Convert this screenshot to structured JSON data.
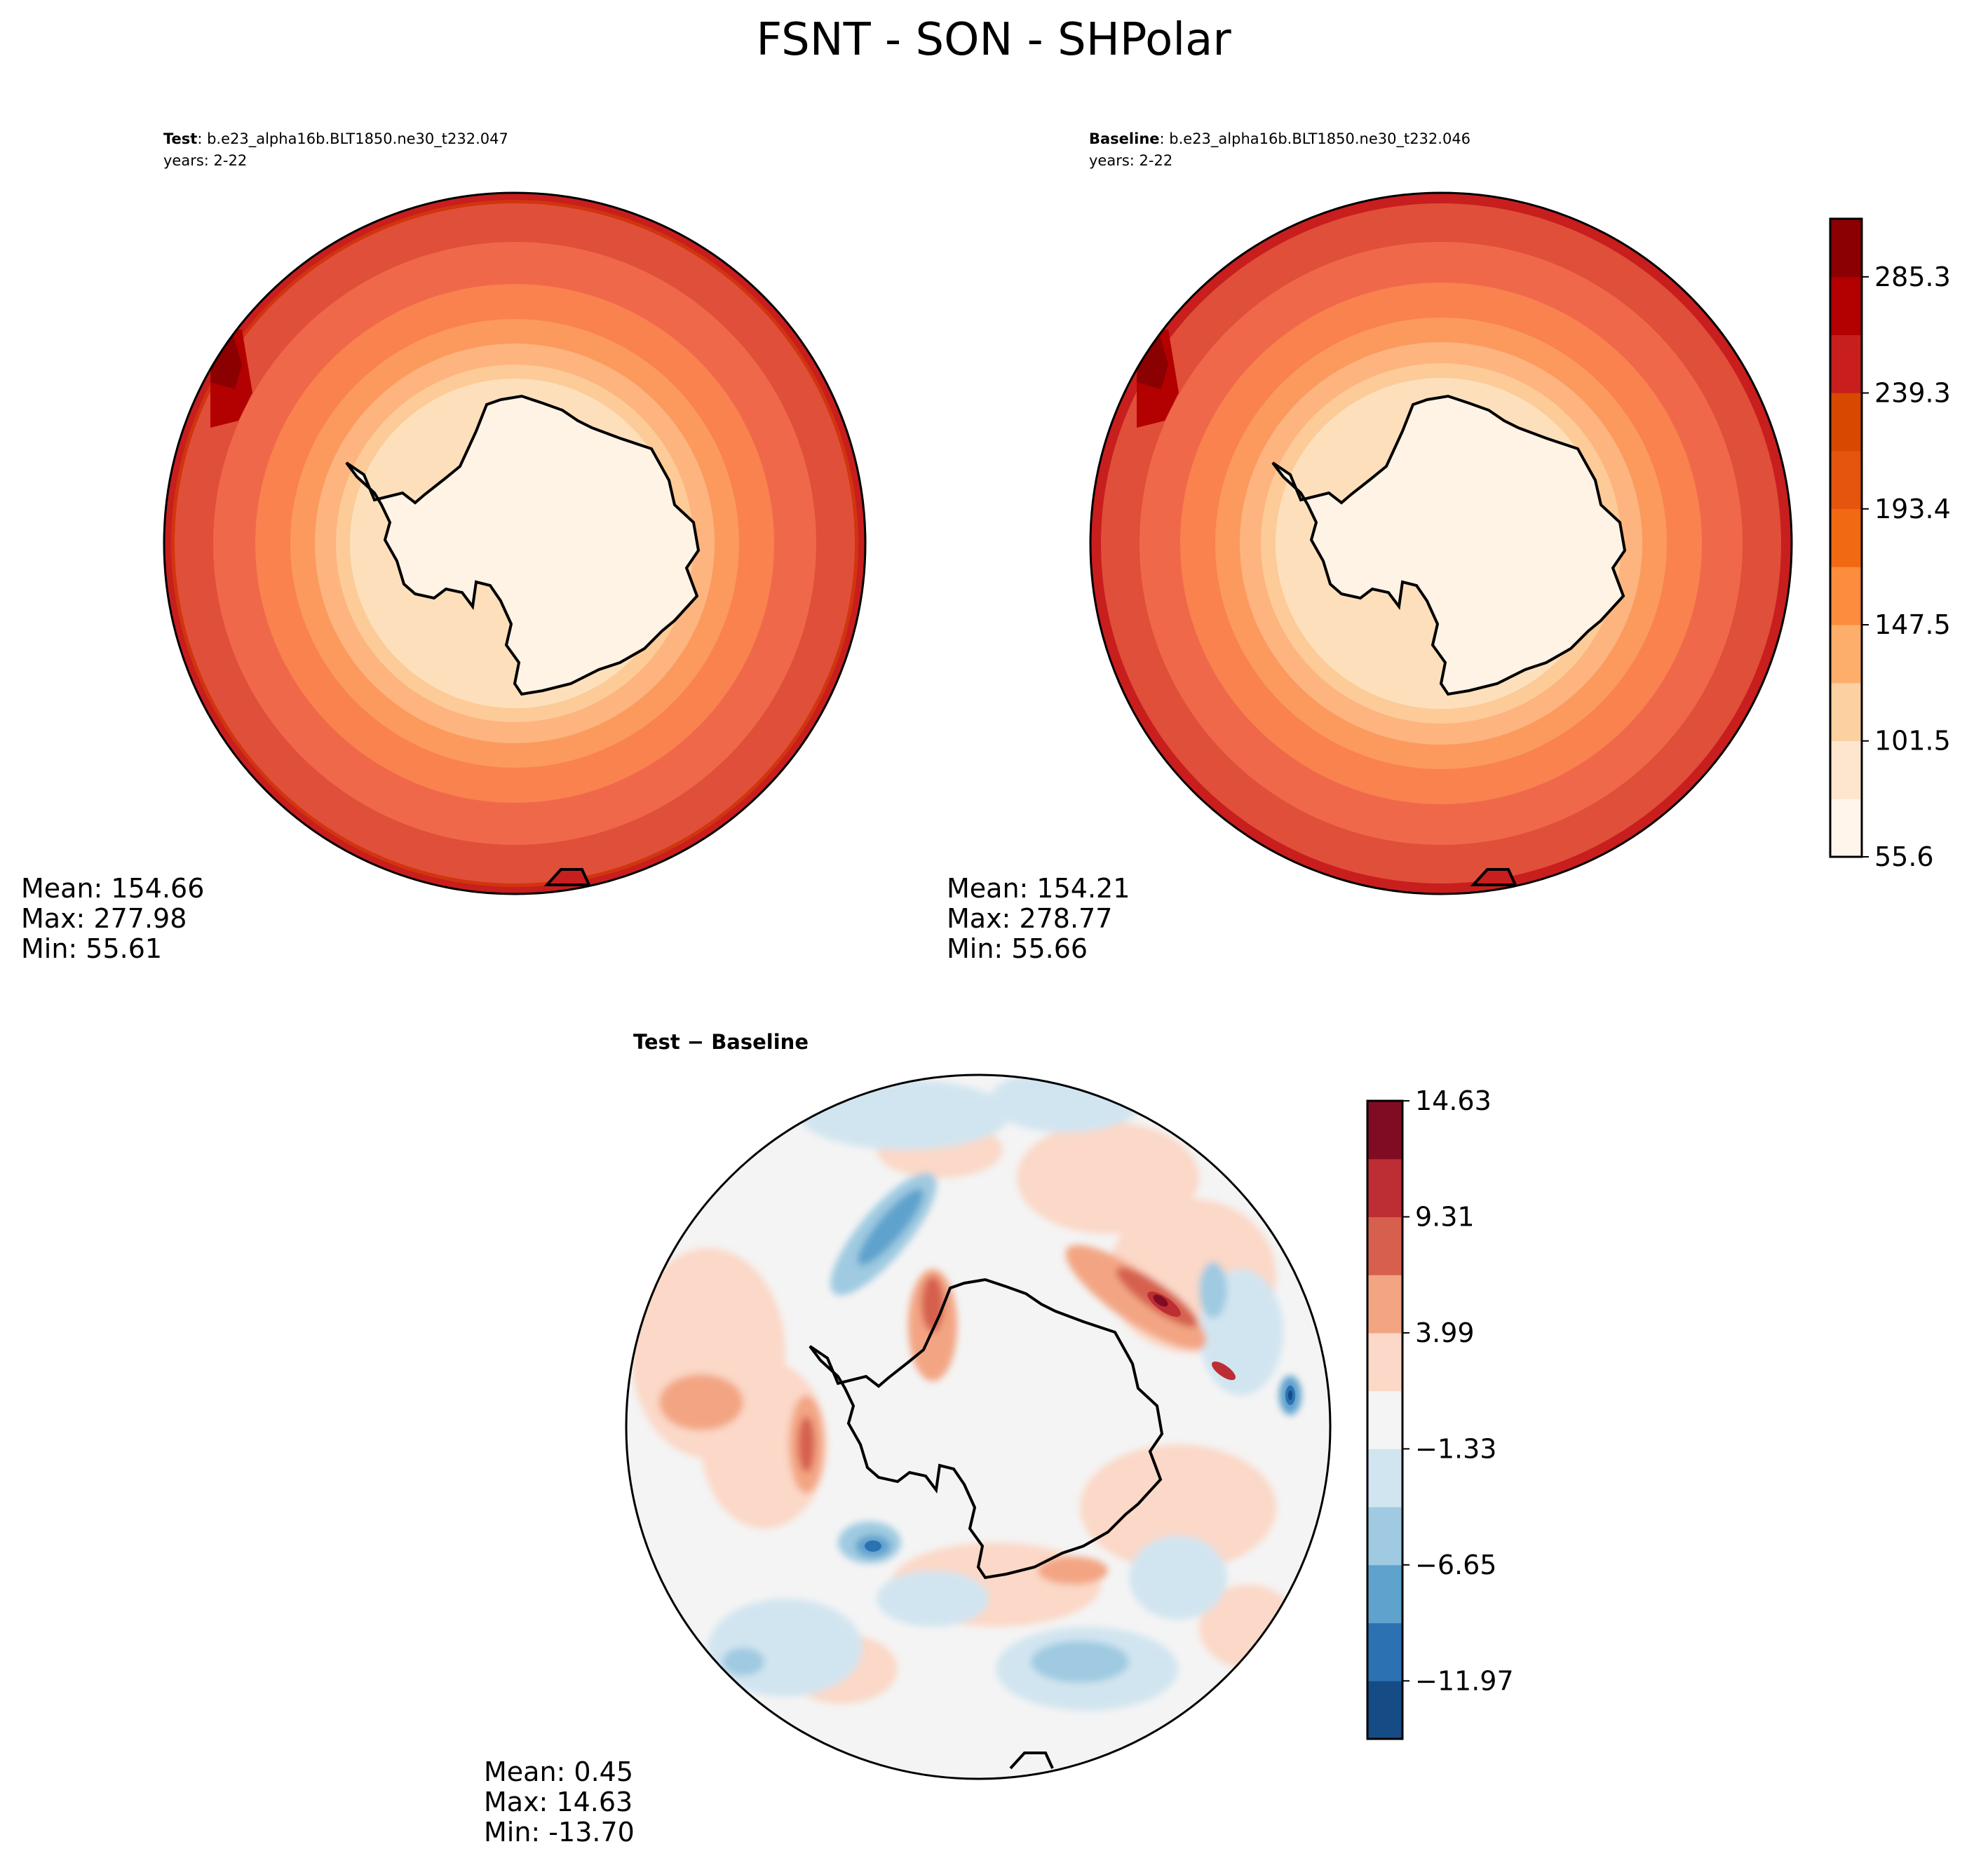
{
  "figure": {
    "title": "FSNT - SON - SHPolar"
  },
  "colors": {
    "reds": [
      "#fff5eb",
      "#fee6ce",
      "#fdd0a2",
      "#fdae6b",
      "#fd8d3c",
      "#f16913",
      "#e6550d",
      "#d94801",
      "#c81e1e",
      "#b30000",
      "#8b0000"
    ],
    "diverging": [
      "#154c86",
      "#2c72b3",
      "#5ea2cd",
      "#9fcae1",
      "#d1e5f0",
      "#f4f4f4",
      "#fbd8c7",
      "#f3a583",
      "#d6604d",
      "#bd2d34",
      "#7f0c22"
    ],
    "land": "#fef3e4",
    "coast": "#000000"
  },
  "chart_data": [
    {
      "id": "test",
      "type": "contour-map",
      "projection": "south-polar-stereographic",
      "title_bold": "Test",
      "title_rest": ": b.e23_alpha16b.BLT1850.ne30_t232.047",
      "subtitle": "years: 2-22",
      "stats": {
        "mean": "Mean: 154.66",
        "max": "Max: 277.98",
        "min": "Min: 55.61"
      },
      "field_range": [
        55.61,
        277.98
      ]
    },
    {
      "id": "baseline",
      "type": "contour-map",
      "projection": "south-polar-stereographic",
      "title_bold": "Baseline",
      "title_rest": ": b.e23_alpha16b.BLT1850.ne30_t232.046",
      "subtitle": "years: 2-22",
      "stats": {
        "mean": "Mean: 154.21",
        "max": "Max: 278.77",
        "min": "Min: 55.66"
      },
      "field_range": [
        55.66,
        278.77
      ],
      "colorbar": {
        "range": [
          55.6,
          308.3
        ],
        "ticks": [
          55.6,
          101.5,
          147.5,
          193.4,
          239.3,
          285.3
        ],
        "tick_labels": [
          "55.6",
          "101.5",
          "147.5",
          "193.4",
          "239.3",
          "285.3"
        ],
        "n_levels": 11
      }
    },
    {
      "id": "diff",
      "type": "contour-map",
      "projection": "south-polar-stereographic",
      "title": "Test − Baseline",
      "stats": {
        "mean": "Mean:  0.45",
        "max": "Max: 14.63",
        "min": "Min: -13.70"
      },
      "field_range": [
        -13.7,
        14.63
      ],
      "colorbar": {
        "range": [
          -14.63,
          14.63
        ],
        "ticks": [
          -11.97,
          -6.65,
          -1.33,
          3.99,
          9.31,
          14.63
        ],
        "tick_labels": [
          "−11.97",
          "−6.65",
          "−1.33",
          "3.99",
          "9.31",
          "14.63"
        ],
        "n_levels": 11
      }
    }
  ]
}
